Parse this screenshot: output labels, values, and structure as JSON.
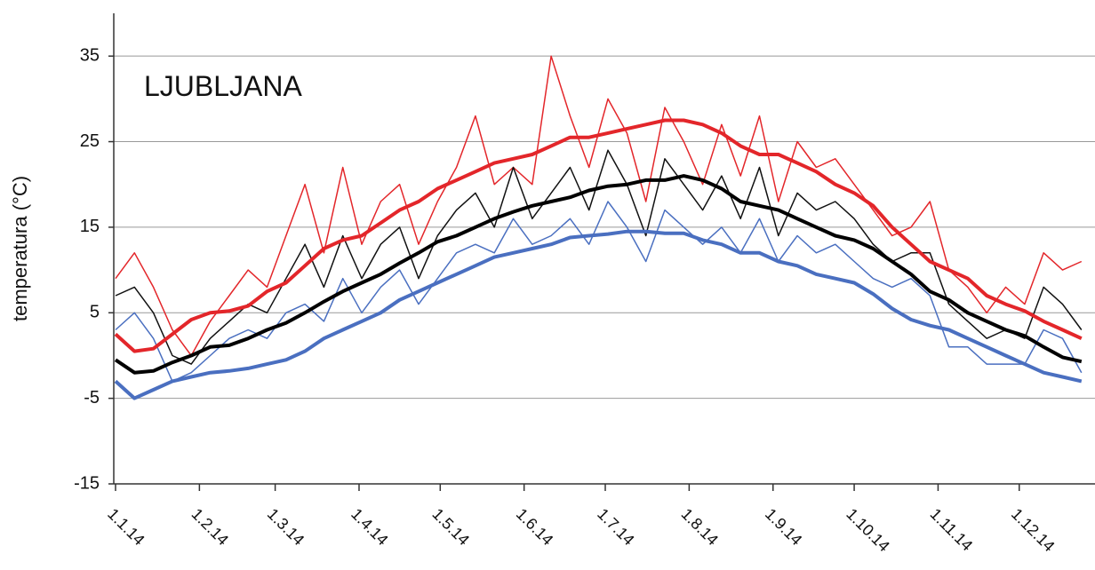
{
  "chart_data": {
    "type": "line",
    "title": "LJUBLJANA",
    "y_label": "temperatura (°C)",
    "xlim": [
      0,
      362
    ],
    "ylim": [
      -15,
      40
    ],
    "yticks": [
      -15,
      -5,
      5,
      15,
      25,
      35
    ],
    "xticks": [
      {
        "value": 0,
        "label": "1.1.14"
      },
      {
        "value": 31,
        "label": "1.2.14"
      },
      {
        "value": 59,
        "label": "1.3.14"
      },
      {
        "value": 90,
        "label": "1.4.14"
      },
      {
        "value": 120,
        "label": "1.5.14"
      },
      {
        "value": 151,
        "label": "1.6.14"
      },
      {
        "value": 181,
        "label": "1.7.14"
      },
      {
        "value": 212,
        "label": "1.8.14"
      },
      {
        "value": 243,
        "label": "1.9.14"
      },
      {
        "value": 273,
        "label": "1.10.14"
      },
      {
        "value": 304,
        "label": "1.11.14"
      },
      {
        "value": 334,
        "label": "1.12.14"
      }
    ],
    "grid": true,
    "x": [
      0,
      7,
      14,
      21,
      28,
      35,
      42,
      49,
      56,
      63,
      70,
      77,
      84,
      91,
      98,
      105,
      112,
      119,
      126,
      133,
      140,
      147,
      154,
      161,
      168,
      175,
      182,
      189,
      196,
      203,
      210,
      217,
      224,
      231,
      238,
      245,
      252,
      259,
      266,
      273,
      280,
      287,
      294,
      301,
      308,
      315,
      322,
      329,
      336,
      343,
      350,
      357
    ],
    "series": [
      {
        "color": "#e3262a",
        "line_width": 1.5,
        "values": [
          9,
          12,
          8,
          3,
          0,
          4,
          7,
          10,
          8,
          14,
          20,
          12,
          22,
          13,
          18,
          20,
          13,
          18,
          22,
          28,
          20,
          22,
          20,
          35,
          28,
          22,
          30,
          26,
          18,
          29,
          25,
          20,
          27,
          21,
          28,
          18,
          25,
          22,
          23,
          20,
          17,
          14,
          15,
          18,
          10,
          8,
          5,
          8,
          6,
          12,
          10,
          11
        ]
      },
      {
        "color": "#111111",
        "line_width": 1.5,
        "values": [
          7,
          8,
          5,
          0,
          -1,
          2,
          4,
          6,
          5,
          9,
          13,
          8,
          14,
          9,
          13,
          15,
          9,
          14,
          17,
          19,
          15,
          22,
          16,
          19,
          22,
          17,
          24,
          20,
          14,
          23,
          20,
          17,
          21,
          16,
          22,
          14,
          19,
          17,
          18,
          16,
          13,
          11,
          12,
          12,
          6,
          4,
          2,
          3,
          2,
          8,
          6,
          3
        ]
      },
      {
        "color": "#4a6fc0",
        "line_width": 1.5,
        "values": [
          3,
          5,
          2,
          -3,
          -2,
          0,
          2,
          3,
          2,
          5,
          6,
          4,
          9,
          5,
          8,
          10,
          6,
          9,
          12,
          13,
          12,
          16,
          13,
          14,
          16,
          13,
          18,
          15,
          11,
          17,
          15,
          13,
          15,
          12,
          16,
          11,
          14,
          12,
          13,
          11,
          9,
          8,
          9,
          7,
          1,
          1,
          -1,
          -1,
          -1,
          3,
          2,
          -2
        ]
      },
      {
        "color": "#e3262a",
        "line_width": 4,
        "values": [
          2.5,
          0.5,
          0.8,
          2.5,
          4.2,
          5,
          5.2,
          5.8,
          7.5,
          8.5,
          10.5,
          12.5,
          13.5,
          14,
          15.5,
          17,
          18,
          19.5,
          20.5,
          21.5,
          22.5,
          23,
          23.5,
          24.5,
          25.5,
          25.5,
          26,
          26.5,
          27,
          27.5,
          27.5,
          27,
          26,
          24.5,
          23.5,
          23.5,
          22.5,
          21.5,
          20,
          19,
          17.5,
          15,
          13,
          11,
          10,
          9,
          7,
          6,
          5.2,
          4,
          3,
          2
        ]
      },
      {
        "color": "#000000",
        "line_width": 4,
        "values": [
          -0.5,
          -2,
          -1.8,
          -0.8,
          0,
          1,
          1.2,
          2,
          3,
          3.8,
          5,
          6.3,
          7.5,
          8.5,
          9.5,
          10.8,
          12,
          13.3,
          14,
          15,
          16,
          16.8,
          17.5,
          18,
          18.5,
          19.3,
          19.8,
          20,
          20.5,
          20.5,
          21,
          20.5,
          19.5,
          18,
          17.5,
          17,
          16,
          15,
          14,
          13.5,
          12.5,
          11,
          9.5,
          7.5,
          6.5,
          5,
          4,
          3,
          2.3,
          1,
          -0.2,
          -0.7
        ]
      },
      {
        "color": "#4a6fc0",
        "line_width": 4,
        "values": [
          -3,
          -5,
          -4,
          -3,
          -2.5,
          -2,
          -1.8,
          -1.5,
          -1,
          -0.5,
          0.5,
          2,
          3,
          4,
          5,
          6.5,
          7.5,
          8.5,
          9.5,
          10.5,
          11.5,
          12,
          12.5,
          13,
          13.8,
          14,
          14.2,
          14.5,
          14.5,
          14.3,
          14.3,
          13.5,
          13,
          12,
          12,
          11,
          10.5,
          9.5,
          9,
          8.5,
          7.2,
          5.5,
          4.2,
          3.5,
          3,
          2,
          1,
          0,
          -1,
          -2,
          -2.5,
          -3
        ]
      }
    ]
  }
}
